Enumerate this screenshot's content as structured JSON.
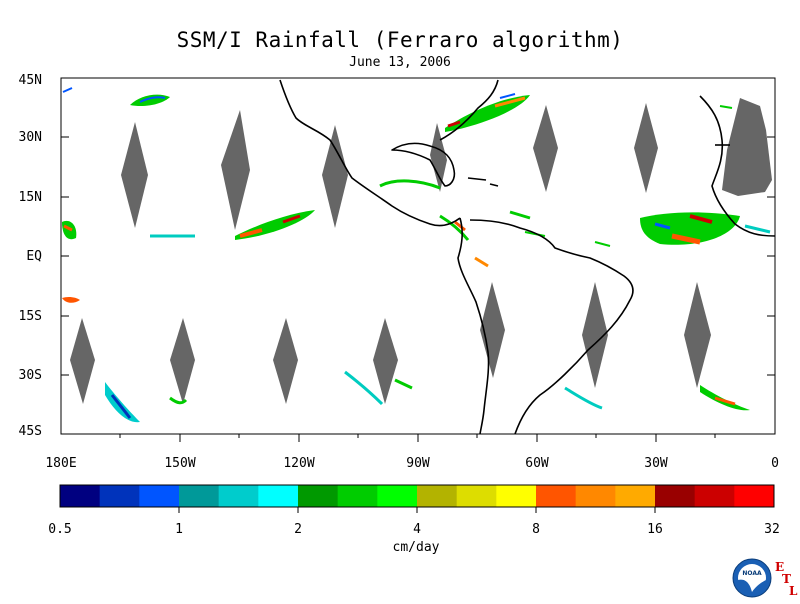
{
  "title": "SSM/I Rainfall (Ferraro algorithm)",
  "subtitle": "June 13, 2006",
  "map": {
    "lat_labels": [
      "45N",
      "30N",
      "15N",
      "EQ",
      "15S",
      "30S",
      "45S"
    ],
    "lon_labels": [
      "180E",
      "150W",
      "120W",
      "90W",
      "60W",
      "30W",
      "0"
    ],
    "land_color": "#000000",
    "no_data_color": "#666666",
    "background_color": "#ffffff"
  },
  "colorbar": {
    "tick_labels": [
      "0.5",
      "1",
      "2",
      "4",
      "8",
      "16",
      "32"
    ],
    "unit": "cm/day",
    "colors": [
      "#000080",
      "#0033bb",
      "#0055ff",
      "#009999",
      "#00cccc",
      "#00ffff",
      "#009900",
      "#00cc00",
      "#00ff00",
      "#b3b300",
      "#dddd00",
      "#ffff00",
      "#ff5500",
      "#ff8800",
      "#ffaa00",
      "#990000",
      "#cc0000",
      "#ff0000"
    ]
  },
  "logo": {
    "org": "NOAA",
    "letters": [
      "E",
      "T",
      "L"
    ],
    "accent": "#d00000"
  }
}
